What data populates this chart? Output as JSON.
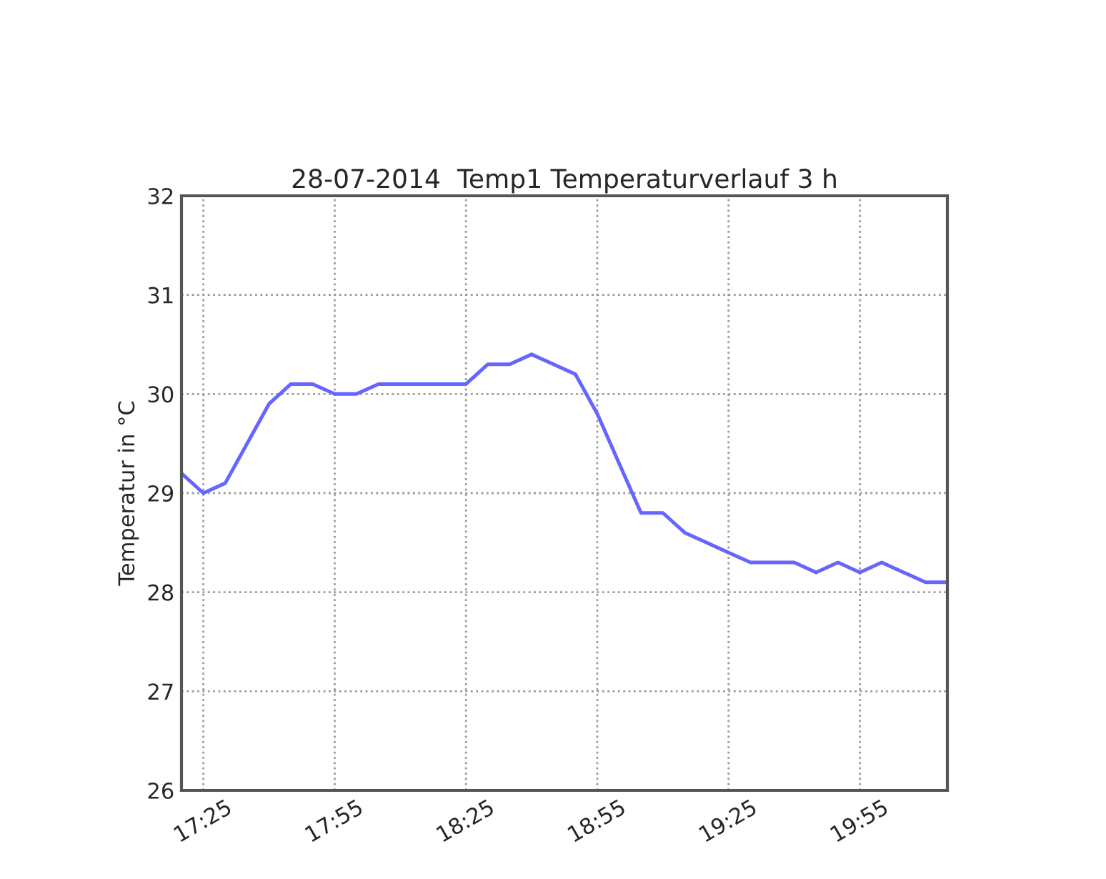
{
  "chart_data": {
    "type": "line",
    "title": "28-07-2014  Temp1 Temperaturverlauf 3 h",
    "ylabel": "Temperatur in °C",
    "x": [
      17.3333,
      17.4167,
      17.5,
      17.5833,
      17.6667,
      17.75,
      17.8333,
      17.9167,
      18.0,
      18.0833,
      18.1667,
      18.25,
      18.3333,
      18.4167,
      18.5,
      18.5833,
      18.6667,
      18.75,
      18.8333,
      18.9167,
      19.0,
      19.0833,
      19.1667,
      19.25,
      19.3333,
      19.4167,
      19.5,
      19.5833,
      19.6667,
      19.75,
      19.8333,
      19.9167,
      20.0,
      20.0833,
      20.1667,
      20.25
    ],
    "series": [
      {
        "color": "#6666ff",
        "values": [
          29.2,
          29.0,
          29.1,
          29.5,
          29.9,
          30.1,
          30.1,
          30.0,
          30.0,
          30.1,
          30.1,
          30.1,
          30.1,
          30.1,
          30.3,
          30.3,
          30.4,
          30.3,
          30.2,
          29.8,
          29.3,
          28.8,
          28.8,
          28.6,
          28.5,
          28.4,
          28.3,
          28.3,
          28.3,
          28.2,
          28.3,
          28.2,
          28.3,
          28.2,
          28.1,
          28.1
        ]
      }
    ],
    "xlim": [
      17.3333,
      20.25
    ],
    "ylim": [
      26,
      32
    ],
    "xticks": [
      {
        "value": 17.4167,
        "label": "17:25"
      },
      {
        "value": 17.9167,
        "label": "17:55"
      },
      {
        "value": 18.4167,
        "label": "18:25"
      },
      {
        "value": 18.9167,
        "label": "18:55"
      },
      {
        "value": 19.4167,
        "label": "19:25"
      },
      {
        "value": 19.9167,
        "label": "19:55"
      }
    ],
    "yticks": [
      26,
      27,
      28,
      29,
      30,
      31,
      32
    ],
    "grid": true,
    "line_style": "solid",
    "marker": "none",
    "legend": false
  }
}
